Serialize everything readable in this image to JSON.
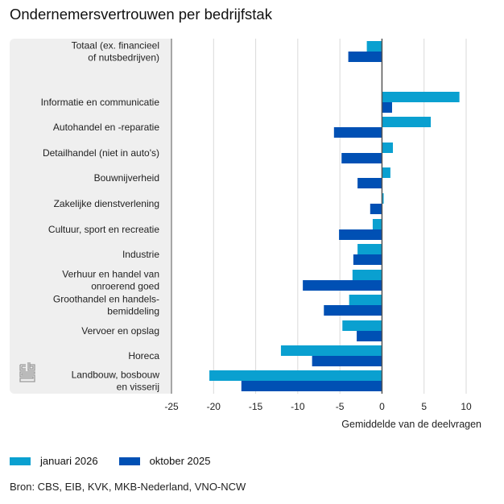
{
  "title": "Ondernemersvertrouwen per bedrijfstak",
  "source": "Bron: CBS, EIB, KVK, MKB-Nederland, VNO-NCW",
  "logo": "cbs-logo",
  "colors": {
    "series_jan": "#0aa0d0",
    "series_okt": "#0050b4",
    "grid": "#d9d9d9",
    "axis": "#555555",
    "panel": "#efefef"
  },
  "legend": [
    {
      "label": "januari 2026",
      "color": "#0aa0d0"
    },
    {
      "label": "oktober 2025",
      "color": "#0050b4"
    }
  ],
  "chart_data": {
    "type": "bar",
    "orientation": "horizontal",
    "title": "Ondernemersvertrouwen per bedrijfstak",
    "xlabel": "Gemiddelde van de deelvragen",
    "ylabel": "",
    "xlim": [
      -25,
      10
    ],
    "xticks": [
      -25,
      -20,
      -15,
      -10,
      -5,
      0,
      5,
      10
    ],
    "grid": true,
    "legend_position": "bottom-left",
    "categories": [
      "Totaal (ex. financieel of nutsbedrijven)",
      "Informatie en communicatie",
      "Autohandel en -reparatie",
      "Detailhandel (niet in auto's)",
      "Bouwnijverheid",
      "Zakelijke dienstverlening",
      "Cultuur, sport en recreatie",
      "Industrie",
      "Verhuur en handel van onroerend goed",
      "Groothandel en handelsbemiddeling",
      "Vervoer en opslag",
      "Horeca",
      "Landbouw, bosbouw en visserij"
    ],
    "category_label_lines": [
      [
        "Totaal (ex. financieel",
        "of nutsbedrijven)"
      ],
      [
        "Informatie en communicatie"
      ],
      [
        "Autohandel en -reparatie"
      ],
      [
        "Detailhandel (niet in auto's)"
      ],
      [
        "Bouwnijverheid"
      ],
      [
        "Zakelijke dienstverlening"
      ],
      [
        "Cultuur, sport en recreatie"
      ],
      [
        "Industrie"
      ],
      [
        "Verhuur en handel van",
        "onroerend goed"
      ],
      [
        "Groothandel en handels-",
        "bemiddeling"
      ],
      [
        "Vervoer en opslag"
      ],
      [
        "Horeca"
      ],
      [
        "Landbouw, bosbouw",
        "en visserij"
      ]
    ],
    "series": [
      {
        "name": "januari 2026",
        "color": "#0aa0d0",
        "values": [
          -1.8,
          9.2,
          5.8,
          1.3,
          1.0,
          0.2,
          -1.1,
          -2.9,
          -3.5,
          -3.9,
          -4.7,
          -12.0,
          -20.5
        ]
      },
      {
        "name": "oktober 2025",
        "color": "#0050b4",
        "values": [
          -4.0,
          1.2,
          -5.7,
          -4.8,
          -2.9,
          -1.4,
          -5.1,
          -3.4,
          -9.4,
          -6.9,
          -3.0,
          -8.3,
          -16.7
        ]
      }
    ]
  }
}
